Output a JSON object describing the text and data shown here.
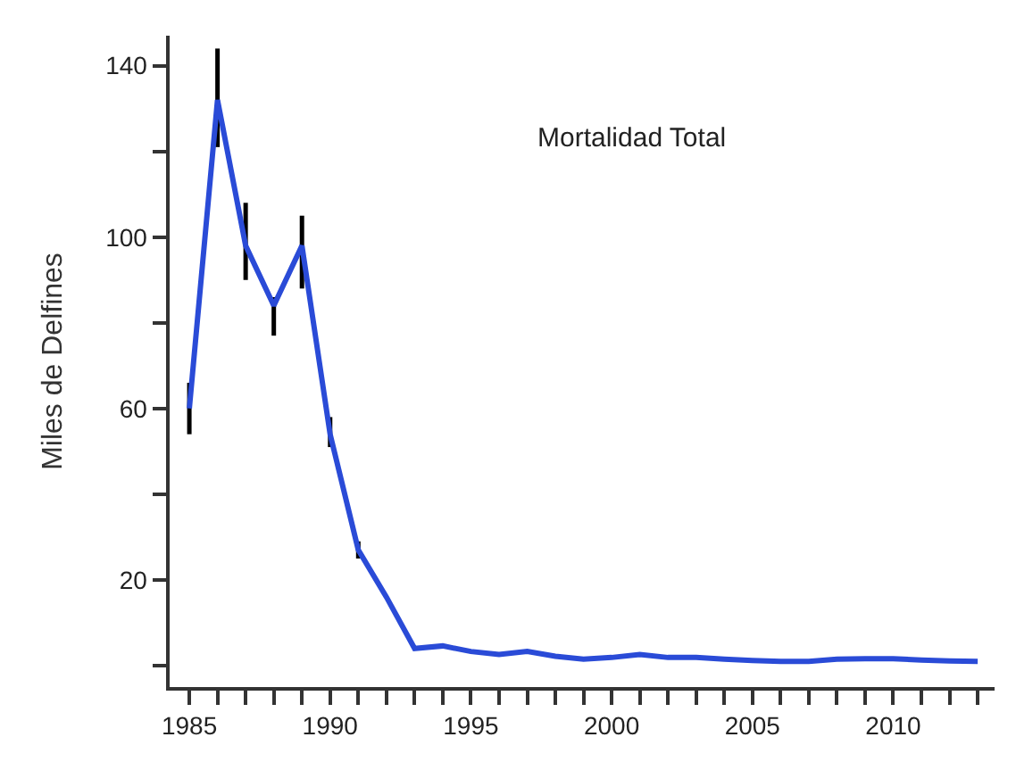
{
  "chart_data": {
    "type": "line",
    "ylabel": "Miles de Delfines",
    "annotations": [
      "Mortalidad Total"
    ],
    "x": [
      1985,
      1986,
      1987,
      1988,
      1989,
      1990,
      1991,
      1992,
      1993,
      1994,
      1995,
      1996,
      1997,
      1998,
      1999,
      2000,
      2001,
      2002,
      2003,
      2004,
      2005,
      2006,
      2007,
      2008,
      2009,
      2010,
      2011,
      2012,
      2013
    ],
    "series": [
      {
        "color": "#2a4bd7",
        "values": [
          60,
          132,
          98,
          84,
          98,
          54,
          27,
          16,
          4,
          4.6,
          3.3,
          2.6,
          3.3,
          2.2,
          1.5,
          1.9,
          2.6,
          1.9,
          1.9,
          1.5,
          1.2,
          1,
          1,
          1.5,
          1.6,
          1.6,
          1.3,
          1.1,
          1
        ],
        "errors": [
          [
            54,
            66
          ],
          [
            121,
            144
          ],
          [
            90,
            108
          ],
          [
            77,
            86
          ],
          [
            88,
            105
          ],
          [
            51,
            58
          ],
          [
            25,
            29
          ],
          null,
          null,
          null,
          null,
          null,
          null,
          null,
          null,
          null,
          null,
          null,
          null,
          null,
          null,
          null,
          null,
          null,
          null,
          null,
          null,
          null,
          null
        ]
      }
    ],
    "xlim": [
      1984.3,
      2013.6
    ],
    "xticks": [
      1985,
      {
        "value": 1986,
        "label": null
      },
      {
        "value": 1987,
        "label": null
      },
      {
        "value": 1988,
        "label": null
      },
      {
        "value": 1989,
        "label": null
      },
      1990,
      {
        "value": 1991,
        "label": null
      },
      {
        "value": 1992,
        "label": null
      },
      {
        "value": 1993,
        "label": null
      },
      {
        "value": 1994,
        "label": null
      },
      1995,
      {
        "value": 1996,
        "label": null
      },
      {
        "value": 1997,
        "label": null
      },
      {
        "value": 1998,
        "label": null
      },
      {
        "value": 1999,
        "label": null
      },
      2000,
      {
        "value": 2001,
        "label": null
      },
      {
        "value": 2002,
        "label": null
      },
      {
        "value": 2003,
        "label": null
      },
      {
        "value": 2004,
        "label": null
      },
      2005,
      {
        "value": 2006,
        "label": null
      },
      {
        "value": 2007,
        "label": null
      },
      {
        "value": 2008,
        "label": null
      },
      {
        "value": 2009,
        "label": null
      },
      2010,
      {
        "value": 2011,
        "label": null
      },
      {
        "value": 2012,
        "label": null
      },
      {
        "value": 2013,
        "label": null
      }
    ],
    "ylim": [
      -5,
      147
    ],
    "yticks": [
      {
        "value": 0,
        "label": null
      },
      20,
      {
        "value": 40,
        "label": null
      },
      60,
      {
        "value": 80,
        "label": null
      },
      100,
      {
        "value": 120,
        "label": null
      },
      140
    ],
    "marker": "none",
    "line_style": "solid"
  }
}
